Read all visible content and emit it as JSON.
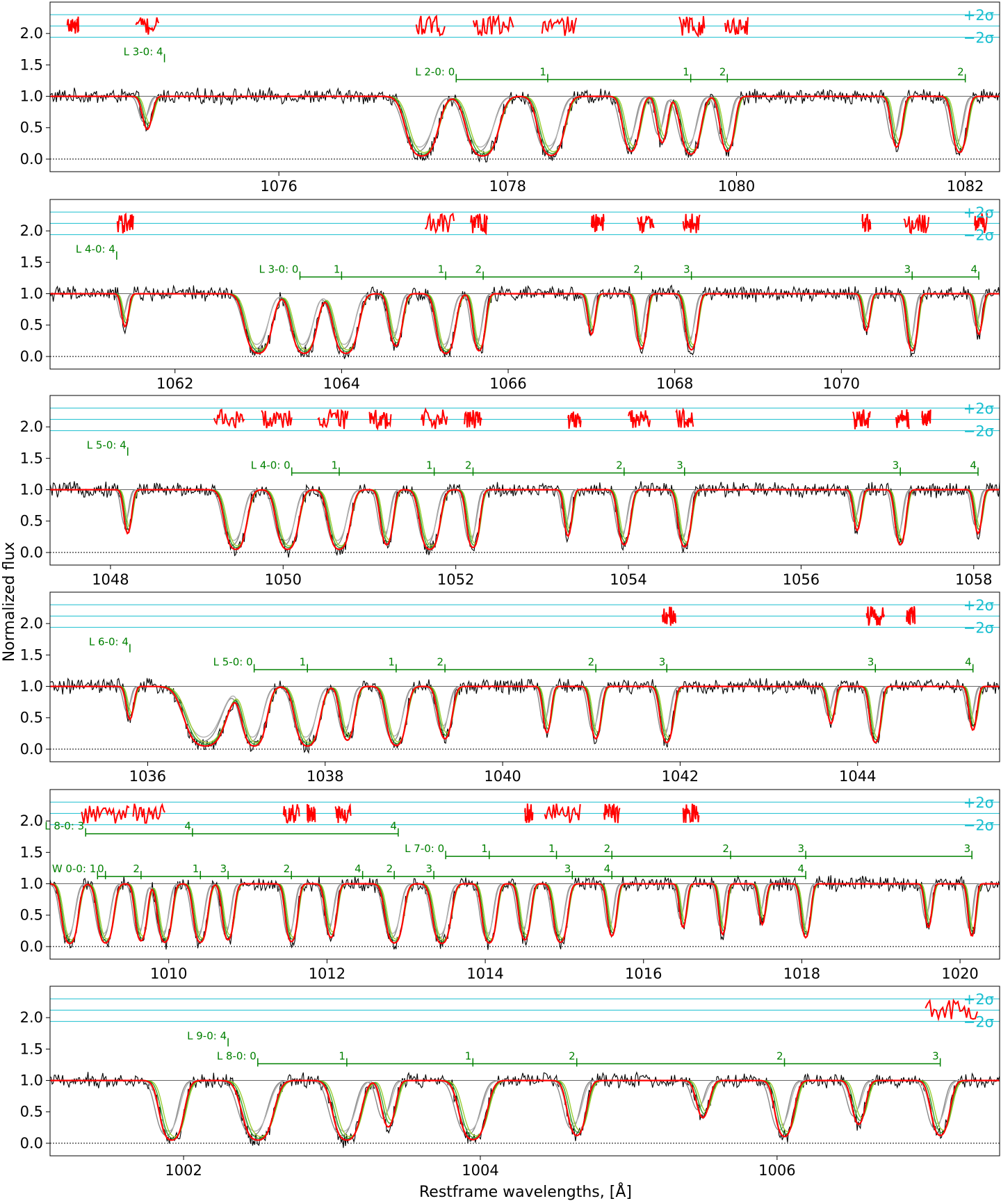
{
  "figure": {
    "ylabel": "Normalized flux",
    "xlabel": "Restframe wavelengths, [Å]",
    "sigma_plus": "+2σ",
    "sigma_minus": "−2σ"
  },
  "colors": {
    "data": "#000000",
    "model_total": "#ff0000",
    "component_green": "#2ca02c",
    "component_lightgreen": "#9acd32",
    "component_gray": "#888888",
    "residuals": "#ff0000",
    "sigma_lines": "#17becf",
    "line_markers": "#008000"
  },
  "chart_data": [
    {
      "type": "line",
      "xlim": [
        1074.0,
        1082.3
      ],
      "ylim": [
        -0.2,
        2.5
      ],
      "xticks": [
        1076,
        1078,
        1080,
        1082
      ],
      "yticks": [
        0.0,
        0.5,
        1.0,
        1.5,
        2.0
      ],
      "series_labels": [
        {
          "text": "L 3-0: 4",
          "x": 1075.0,
          "y": 1.71
        },
        {
          "text": "L 2-0: 0",
          "x": 1077.55,
          "y": 1.39
        },
        {
          "text": "1",
          "x": 1078.35,
          "y": 1.39
        },
        {
          "text": "1",
          "x": 1079.6,
          "y": 1.39
        },
        {
          "text": "2",
          "x": 1079.92,
          "y": 1.39
        },
        {
          "text": "2",
          "x": 1082.0,
          "y": 1.39
        }
      ],
      "absorption": [
        {
          "x": 1074.85,
          "depth": 0.25,
          "w": 0.05
        },
        {
          "x": 1077.25,
          "depth": 1.0,
          "w": 0.12
        },
        {
          "x": 1077.78,
          "depth": 1.0,
          "w": 0.12
        },
        {
          "x": 1078.38,
          "depth": 0.95,
          "w": 0.1
        },
        {
          "x": 1079.08,
          "depth": 0.7,
          "w": 0.07
        },
        {
          "x": 1079.35,
          "depth": 0.45,
          "w": 0.05
        },
        {
          "x": 1079.6,
          "depth": 0.85,
          "w": 0.08
        },
        {
          "x": 1079.92,
          "depth": 0.7,
          "w": 0.06
        },
        {
          "x": 1081.4,
          "depth": 0.55,
          "w": 0.05
        },
        {
          "x": 1081.95,
          "depth": 0.75,
          "w": 0.06
        }
      ],
      "residual_segments": [
        [
          1074.15,
          1074.25
        ],
        [
          1074.75,
          1074.95
        ],
        [
          1077.2,
          1077.45
        ],
        [
          1077.7,
          1078.05
        ],
        [
          1078.3,
          1078.6
        ],
        [
          1079.5,
          1079.72
        ],
        [
          1079.9,
          1080.1
        ]
      ]
    },
    {
      "type": "line",
      "xlim": [
        1060.5,
        1071.9
      ],
      "ylim": [
        -0.2,
        2.5
      ],
      "xticks": [
        1062,
        1064,
        1066,
        1068,
        1070
      ],
      "yticks": [
        0.0,
        0.5,
        1.0,
        1.5,
        2.0
      ],
      "series_labels": [
        {
          "text": "L 4-0: 4",
          "x": 1061.3,
          "y": 1.71
        },
        {
          "text": "L 3-0: 0",
          "x": 1063.5,
          "y": 1.39
        },
        {
          "text": "1",
          "x": 1064.0,
          "y": 1.39
        },
        {
          "text": "1",
          "x": 1065.25,
          "y": 1.39
        },
        {
          "text": "2",
          "x": 1065.7,
          "y": 1.39
        },
        {
          "text": "2",
          "x": 1067.6,
          "y": 1.39
        },
        {
          "text": "3",
          "x": 1068.2,
          "y": 1.39
        },
        {
          "text": "3",
          "x": 1070.85,
          "y": 1.39
        },
        {
          "text": "4",
          "x": 1071.65,
          "y": 1.39
        }
      ],
      "absorption": [
        {
          "x": 1061.4,
          "depth": 0.25,
          "w": 0.05
        },
        {
          "x": 1063.0,
          "depth": 1.0,
          "w": 0.14
        },
        {
          "x": 1063.55,
          "depth": 1.0,
          "w": 0.13
        },
        {
          "x": 1064.05,
          "depth": 1.0,
          "w": 0.13
        },
        {
          "x": 1064.65,
          "depth": 0.6,
          "w": 0.08
        },
        {
          "x": 1065.25,
          "depth": 1.0,
          "w": 0.1
        },
        {
          "x": 1065.65,
          "depth": 0.8,
          "w": 0.07
        },
        {
          "x": 1067.0,
          "depth": 0.35,
          "w": 0.05
        },
        {
          "x": 1067.6,
          "depth": 0.7,
          "w": 0.06
        },
        {
          "x": 1068.2,
          "depth": 0.75,
          "w": 0.07
        },
        {
          "x": 1070.3,
          "depth": 0.3,
          "w": 0.05
        },
        {
          "x": 1070.85,
          "depth": 0.8,
          "w": 0.06
        },
        {
          "x": 1071.65,
          "depth": 0.35,
          "w": 0.05
        }
      ],
      "residual_segments": [
        [
          1061.3,
          1061.5
        ],
        [
          1065.0,
          1065.35
        ],
        [
          1065.55,
          1065.75
        ],
        [
          1067.0,
          1067.15
        ],
        [
          1067.55,
          1067.75
        ],
        [
          1068.1,
          1068.3
        ],
        [
          1070.25,
          1070.35
        ],
        [
          1070.75,
          1071.05
        ],
        [
          1071.6,
          1071.75
        ]
      ]
    },
    {
      "type": "line",
      "xlim": [
        1047.3,
        1058.3
      ],
      "ylim": [
        -0.2,
        2.5
      ],
      "xticks": [
        1048,
        1050,
        1052,
        1054,
        1056,
        1058
      ],
      "yticks": [
        0.0,
        0.5,
        1.0,
        1.5,
        2.0
      ],
      "series_labels": [
        {
          "text": "L 5-0: 4",
          "x": 1048.2,
          "y": 1.71
        },
        {
          "text": "L 4-0: 0",
          "x": 1050.1,
          "y": 1.39
        },
        {
          "text": "1",
          "x": 1050.65,
          "y": 1.39
        },
        {
          "text": "1",
          "x": 1051.75,
          "y": 1.39
        },
        {
          "text": "2",
          "x": 1052.2,
          "y": 1.39
        },
        {
          "text": "2",
          "x": 1053.95,
          "y": 1.39
        },
        {
          "text": "3",
          "x": 1054.65,
          "y": 1.39
        },
        {
          "text": "3",
          "x": 1057.15,
          "y": 1.39
        },
        {
          "text": "4",
          "x": 1058.05,
          "y": 1.39
        }
      ],
      "absorption": [
        {
          "x": 1048.2,
          "depth": 0.4,
          "w": 0.05
        },
        {
          "x": 1049.45,
          "depth": 1.0,
          "w": 0.11
        },
        {
          "x": 1050.05,
          "depth": 1.0,
          "w": 0.11
        },
        {
          "x": 1050.65,
          "depth": 1.0,
          "w": 0.11
        },
        {
          "x": 1051.2,
          "depth": 0.7,
          "w": 0.07
        },
        {
          "x": 1051.7,
          "depth": 1.0,
          "w": 0.1
        },
        {
          "x": 1052.2,
          "depth": 0.85,
          "w": 0.07
        },
        {
          "x": 1053.3,
          "depth": 0.45,
          "w": 0.05
        },
        {
          "x": 1053.95,
          "depth": 0.7,
          "w": 0.07
        },
        {
          "x": 1054.65,
          "depth": 0.8,
          "w": 0.07
        },
        {
          "x": 1056.65,
          "depth": 0.35,
          "w": 0.05
        },
        {
          "x": 1057.15,
          "depth": 0.7,
          "w": 0.06
        },
        {
          "x": 1058.05,
          "depth": 0.4,
          "w": 0.05
        }
      ],
      "residual_segments": [
        [
          1049.2,
          1049.55
        ],
        [
          1049.75,
          1050.1
        ],
        [
          1050.4,
          1050.75
        ],
        [
          1051.0,
          1051.25
        ],
        [
          1051.6,
          1051.9
        ],
        [
          1052.1,
          1052.3
        ],
        [
          1053.3,
          1053.45
        ],
        [
          1054.0,
          1054.25
        ],
        [
          1054.55,
          1054.75
        ],
        [
          1056.6,
          1056.8
        ],
        [
          1057.1,
          1057.25
        ],
        [
          1057.4,
          1057.5
        ]
      ]
    },
    {
      "type": "line",
      "xlim": [
        1034.9,
        1045.6
      ],
      "ylim": [
        -0.2,
        2.5
      ],
      "xticks": [
        1036,
        1038,
        1040,
        1042,
        1044
      ],
      "yticks": [
        0.0,
        0.5,
        1.0,
        1.5,
        2.0
      ],
      "series_labels": [
        {
          "text": "L 6-0: 4",
          "x": 1035.8,
          "y": 1.71
        },
        {
          "text": "L 5-0: 0",
          "x": 1037.2,
          "y": 1.39
        },
        {
          "text": "1",
          "x": 1037.8,
          "y": 1.39
        },
        {
          "text": "1",
          "x": 1038.8,
          "y": 1.39
        },
        {
          "text": "2",
          "x": 1039.35,
          "y": 1.39
        },
        {
          "text": "2",
          "x": 1041.05,
          "y": 1.39
        },
        {
          "text": "3",
          "x": 1041.85,
          "y": 1.39
        },
        {
          "text": "3",
          "x": 1044.2,
          "y": 1.39
        },
        {
          "text": "4",
          "x": 1045.3,
          "y": 1.39
        }
      ],
      "absorption": [
        {
          "x": 1035.8,
          "depth": 0.25,
          "w": 0.05
        },
        {
          "x": 1036.65,
          "depth": 1.0,
          "w": 0.2
        },
        {
          "x": 1037.2,
          "depth": 1.0,
          "w": 0.12
        },
        {
          "x": 1037.8,
          "depth": 1.0,
          "w": 0.12
        },
        {
          "x": 1038.25,
          "depth": 0.65,
          "w": 0.08
        },
        {
          "x": 1038.8,
          "depth": 0.95,
          "w": 0.1
        },
        {
          "x": 1039.35,
          "depth": 0.6,
          "w": 0.08
        },
        {
          "x": 1040.5,
          "depth": 0.45,
          "w": 0.05
        },
        {
          "x": 1041.05,
          "depth": 0.6,
          "w": 0.06
        },
        {
          "x": 1041.85,
          "depth": 0.75,
          "w": 0.07
        },
        {
          "x": 1043.7,
          "depth": 0.3,
          "w": 0.05
        },
        {
          "x": 1044.2,
          "depth": 0.75,
          "w": 0.06
        },
        {
          "x": 1045.3,
          "depth": 0.4,
          "w": 0.05
        }
      ],
      "residual_segments": [
        [
          1041.8,
          1041.95
        ],
        [
          1044.1,
          1044.3
        ],
        [
          1044.55,
          1044.65
        ]
      ]
    },
    {
      "type": "line",
      "xlim": [
        1008.5,
        1020.5
      ],
      "ylim": [
        -0.2,
        2.5
      ],
      "xticks": [
        1010,
        1012,
        1014,
        1016,
        1018,
        1020
      ],
      "yticks": [
        0.0,
        0.5,
        1.0,
        1.5,
        2.0
      ],
      "series_labels": [
        {
          "text": "L 8-0: 3",
          "x": 1008.95,
          "y": 1.92
        },
        {
          "text": "4",
          "x": 1010.3,
          "y": 1.92
        },
        {
          "text": "4",
          "x": 1012.9,
          "y": 1.92
        },
        {
          "text": "L 7-0: 0",
          "x": 1013.5,
          "y": 1.56
        },
        {
          "text": "1",
          "x": 1014.05,
          "y": 1.56
        },
        {
          "text": "1",
          "x": 1014.9,
          "y": 1.56
        },
        {
          "text": "2",
          "x": 1015.6,
          "y": 1.56
        },
        {
          "text": "2",
          "x": 1017.1,
          "y": 1.56
        },
        {
          "text": "3",
          "x": 1018.05,
          "y": 1.56
        },
        {
          "text": "3",
          "x": 1020.15,
          "y": 1.56
        },
        {
          "text": "W 0-0: 1",
          "x": 1009.1,
          "y": 1.24
        },
        {
          "text": "0",
          "x": 1009.2,
          "y": 1.24
        },
        {
          "text": "2",
          "x": 1009.65,
          "y": 1.24
        },
        {
          "text": "1",
          "x": 1010.4,
          "y": 1.24
        },
        {
          "text": "3",
          "x": 1010.75,
          "y": 1.24
        },
        {
          "text": "2",
          "x": 1011.55,
          "y": 1.24
        },
        {
          "text": "4",
          "x": 1012.45,
          "y": 1.24
        },
        {
          "text": "2",
          "x": 1012.85,
          "y": 1.24
        },
        {
          "text": "3",
          "x": 1013.35,
          "y": 1.24
        },
        {
          "text": "3",
          "x": 1015.1,
          "y": 1.24
        },
        {
          "text": "4",
          "x": 1015.6,
          "y": 1.24
        },
        {
          "text": "4",
          "x": 1018.05,
          "y": 1.24
        }
      ],
      "absorption": [
        {
          "x": 1008.75,
          "depth": 1.0,
          "w": 0.09
        },
        {
          "x": 1009.2,
          "depth": 0.95,
          "w": 0.09
        },
        {
          "x": 1009.65,
          "depth": 0.8,
          "w": 0.07
        },
        {
          "x": 1009.95,
          "depth": 0.9,
          "w": 0.08
        },
        {
          "x": 1010.4,
          "depth": 0.9,
          "w": 0.08
        },
        {
          "x": 1010.75,
          "depth": 0.75,
          "w": 0.07
        },
        {
          "x": 1011.55,
          "depth": 0.85,
          "w": 0.07
        },
        {
          "x": 1012.05,
          "depth": 0.65,
          "w": 0.07
        },
        {
          "x": 1012.85,
          "depth": 0.95,
          "w": 0.1
        },
        {
          "x": 1013.45,
          "depth": 1.0,
          "w": 0.1
        },
        {
          "x": 1014.05,
          "depth": 0.95,
          "w": 0.08
        },
        {
          "x": 1014.5,
          "depth": 0.75,
          "w": 0.07
        },
        {
          "x": 1014.95,
          "depth": 0.9,
          "w": 0.08
        },
        {
          "x": 1015.6,
          "depth": 0.6,
          "w": 0.06
        },
        {
          "x": 1016.5,
          "depth": 0.4,
          "w": 0.05
        },
        {
          "x": 1017.0,
          "depth": 0.55,
          "w": 0.05
        },
        {
          "x": 1017.5,
          "depth": 0.35,
          "w": 0.05
        },
        {
          "x": 1018.05,
          "depth": 0.65,
          "w": 0.06
        },
        {
          "x": 1019.6,
          "depth": 0.4,
          "w": 0.05
        },
        {
          "x": 1020.15,
          "depth": 0.6,
          "w": 0.05
        }
      ],
      "residual_segments": [
        [
          1008.9,
          1009.5
        ],
        [
          1009.55,
          1009.95
        ],
        [
          1011.45,
          1011.65
        ],
        [
          1011.75,
          1011.85
        ],
        [
          1012.1,
          1012.3
        ],
        [
          1014.5,
          1014.6
        ],
        [
          1014.75,
          1015.2
        ],
        [
          1015.5,
          1015.7
        ],
        [
          1016.5,
          1016.7
        ]
      ]
    },
    {
      "type": "line",
      "xlim": [
        1001.1,
        1007.5
      ],
      "ylim": [
        -0.2,
        2.5
      ],
      "xticks": [
        1002,
        1004,
        1006
      ],
      "yticks": [
        0.0,
        0.5,
        1.0,
        1.5,
        2.0
      ],
      "series_labels": [
        {
          "text": "L 9-0: 4",
          "x": 1002.3,
          "y": 1.71
        },
        {
          "text": "L 8-0: 0",
          "x": 1002.5,
          "y": 1.39
        },
        {
          "text": "1",
          "x": 1003.1,
          "y": 1.39
        },
        {
          "text": "1",
          "x": 1003.95,
          "y": 1.39
        },
        {
          "text": "2",
          "x": 1004.65,
          "y": 1.39
        },
        {
          "text": "2",
          "x": 1006.05,
          "y": 1.39
        },
        {
          "text": "3",
          "x": 1007.1,
          "y": 1.39
        }
      ],
      "absorption": [
        {
          "x": 1001.92,
          "depth": 1.0,
          "w": 0.07
        },
        {
          "x": 1002.5,
          "depth": 1.0,
          "w": 0.09
        },
        {
          "x": 1003.1,
          "depth": 1.0,
          "w": 0.08
        },
        {
          "x": 1003.38,
          "depth": 0.45,
          "w": 0.05
        },
        {
          "x": 1003.95,
          "depth": 0.95,
          "w": 0.08
        },
        {
          "x": 1004.65,
          "depth": 0.7,
          "w": 0.06
        },
        {
          "x": 1005.5,
          "depth": 0.3,
          "w": 0.05
        },
        {
          "x": 1006.05,
          "depth": 0.75,
          "w": 0.06
        },
        {
          "x": 1006.55,
          "depth": 0.4,
          "w": 0.05
        },
        {
          "x": 1007.1,
          "depth": 0.7,
          "w": 0.06
        }
      ],
      "residual_segments": [
        [
          1007.0,
          1007.35
        ]
      ]
    }
  ]
}
